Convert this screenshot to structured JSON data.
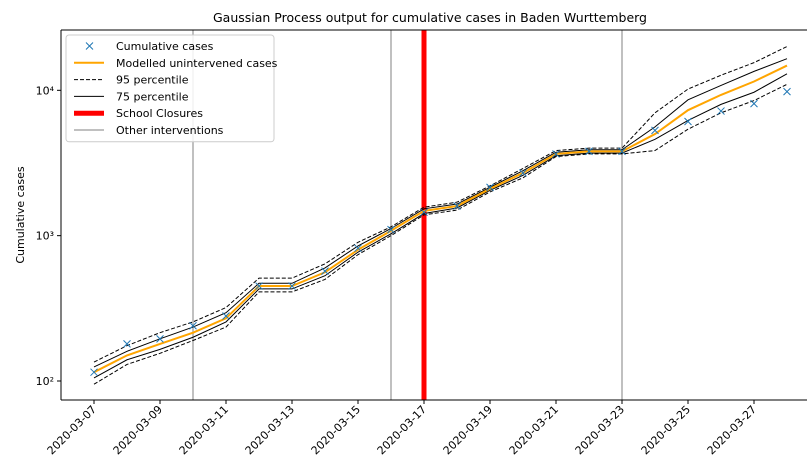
{
  "chart_data": {
    "type": "line",
    "title": "Gaussian Process output for cumulative cases in Baden Wurttemberg",
    "y_label": "Cumulative cases",
    "log_y": true,
    "ylim": [
      74,
      26000
    ],
    "yticks": [
      {
        "value": 100,
        "label": "10²"
      },
      {
        "value": 1000,
        "label": "10³"
      },
      {
        "value": 10000,
        "label": "10⁴"
      }
    ],
    "legend": "upper left",
    "x": [
      "2020-03-07",
      "2020-03-08",
      "2020-03-09",
      "2020-03-10",
      "2020-03-11",
      "2020-03-12",
      "2020-03-13",
      "2020-03-14",
      "2020-03-15",
      "2020-03-16",
      "2020-03-17",
      "2020-03-18",
      "2020-03-19",
      "2020-03-20",
      "2020-03-21",
      "2020-03-22",
      "2020-03-23",
      "2020-03-24",
      "2020-03-25",
      "2020-03-26",
      "2020-03-27",
      "2020-03-28"
    ],
    "series": [
      {
        "name": "Cumulative cases",
        "color": "#1f77b4",
        "style": "marker",
        "values": [
          115,
          180,
          195,
          240,
          280,
          450,
          450,
          570,
          820,
          1100,
          1450,
          1600,
          2150,
          2700,
          3650,
          3800,
          3800,
          5300,
          6100,
          7200,
          8100,
          9800
        ]
      },
      {
        "name": "Modelled unintervened cases",
        "color": "#ffa500",
        "style": "line",
        "values": [
          115,
          150,
          180,
          215,
          270,
          450,
          450,
          560,
          800,
          1080,
          1480,
          1600,
          2100,
          2700,
          3650,
          3800,
          3800,
          5000,
          7300,
          9300,
          11500,
          14800
        ]
      },
      {
        "name": "95 percentile",
        "color": "#000000",
        "style": "dashed",
        "upper": [
          135,
          175,
          215,
          255,
          320,
          510,
          510,
          640,
          900,
          1150,
          1570,
          1700,
          2200,
          2900,
          3850,
          4000,
          4000,
          7000,
          10200,
          12700,
          15500,
          20000
        ],
        "lower": [
          95,
          130,
          155,
          190,
          235,
          410,
          410,
          500,
          740,
          1000,
          1390,
          1500,
          2000,
          2500,
          3500,
          3650,
          3650,
          3850,
          5400,
          7000,
          8500,
          11000
        ]
      },
      {
        "name": "75 percentile",
        "color": "#000000",
        "style": "solid",
        "upper": [
          125,
          160,
          195,
          235,
          295,
          470,
          470,
          600,
          850,
          1120,
          1530,
          1650,
          2150,
          2800,
          3750,
          3900,
          3900,
          5600,
          8600,
          10800,
          13500,
          16500
        ],
        "lower": [
          105,
          140,
          165,
          200,
          255,
          430,
          430,
          530,
          770,
          1030,
          1420,
          1550,
          2050,
          2600,
          3550,
          3700,
          3700,
          4600,
          6200,
          8000,
          9700,
          13000
        ]
      }
    ],
    "vlines": [
      {
        "name": "School Closures",
        "color": "#ff0000",
        "width": 5,
        "x": [
          "2020-03-17"
        ]
      },
      {
        "name": "Other interventions",
        "color": "#c0c0c0",
        "width": 2,
        "x": [
          "2020-03-10",
          "2020-03-16",
          "2020-03-23"
        ]
      }
    ]
  }
}
